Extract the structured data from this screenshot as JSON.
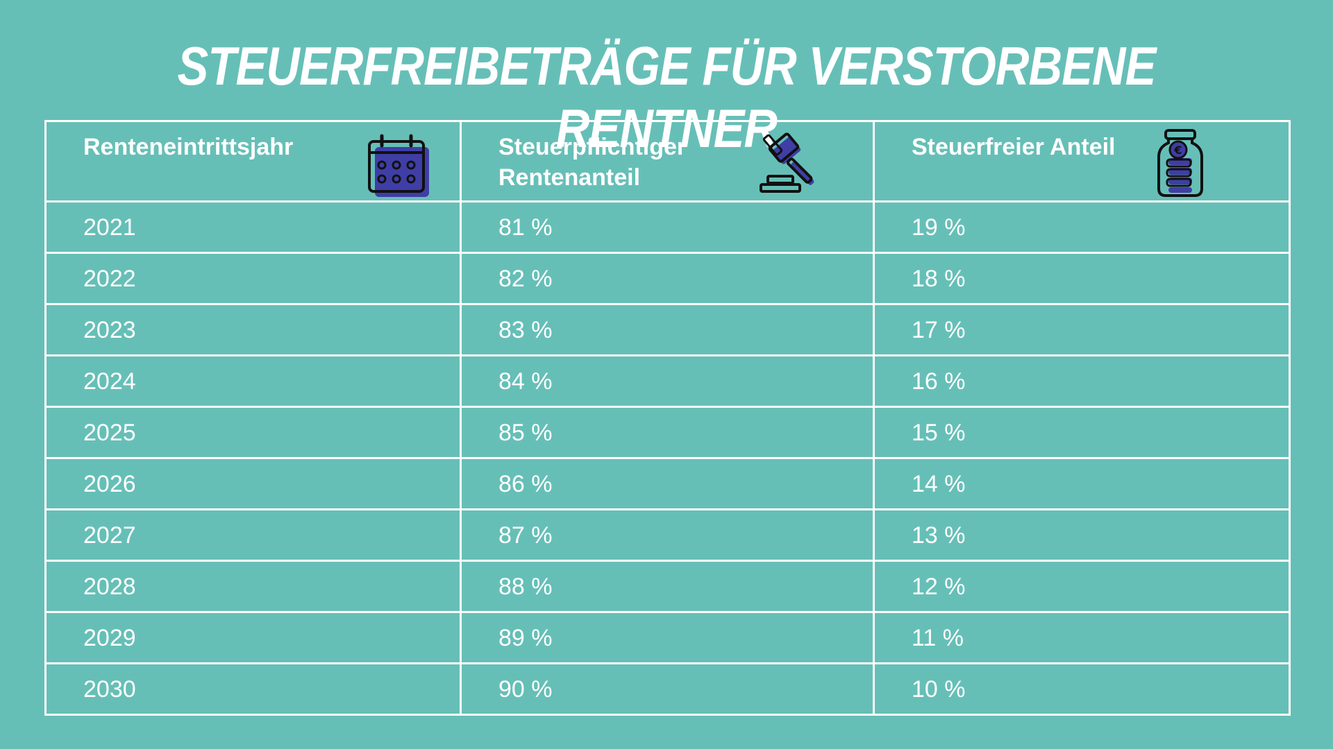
{
  "title": "Steuerfreibeträge für verstorbene Rentner",
  "colors": {
    "background": "#66bfb7",
    "border": "#ffffff",
    "text": "#ffffff",
    "icon_fill": "#3f3ea6",
    "icon_stroke": "#111111"
  },
  "table": {
    "headers": [
      {
        "label": "Renteneintrittsjahr",
        "icon": "calendar-icon"
      },
      {
        "label": "Steuerpflichtiger Rentenanteil",
        "icon": "gavel-icon"
      },
      {
        "label": "Steuerfreier Anteil",
        "icon": "money-jar-icon"
      }
    ],
    "rows": [
      [
        "2021",
        "81 %",
        "19 %"
      ],
      [
        "2022",
        "82 %",
        "18 %"
      ],
      [
        "2023",
        "83 %",
        "17 %"
      ],
      [
        "2024",
        "84 %",
        "16 %"
      ],
      [
        "2025",
        "85 %",
        "15 %"
      ],
      [
        "2026",
        "86 %",
        "14 %"
      ],
      [
        "2027",
        "87 %",
        "13 %"
      ],
      [
        "2028",
        "88 %",
        "12 %"
      ],
      [
        "2029",
        "89 %",
        "11 %"
      ],
      [
        "2030",
        "90 %",
        "10 %"
      ]
    ]
  }
}
